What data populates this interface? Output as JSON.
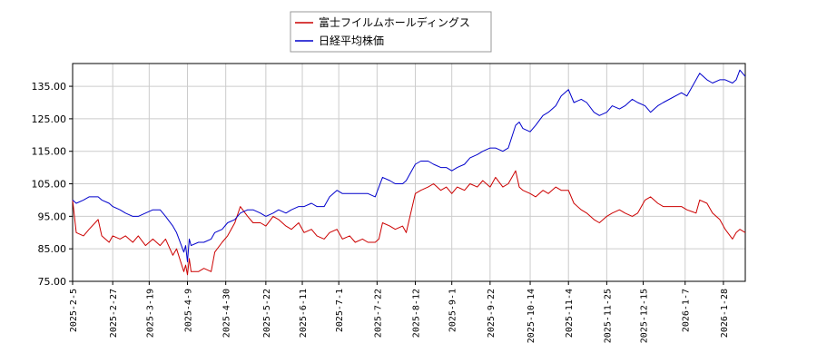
{
  "chart_data": {
    "type": "line",
    "title": "",
    "xlabel": "",
    "ylabel": "",
    "ylim": [
      75,
      142
    ],
    "y_ticks": [
      75,
      85,
      95,
      105,
      115,
      125,
      135
    ],
    "y_tick_labels": [
      "75.00",
      "85.00",
      "95.00",
      "105.00",
      "115.00",
      "125.00",
      "135.00"
    ],
    "x_range": [
      "2025-02-05",
      "2026-02-09"
    ],
    "x_tick_labels": [
      "2025-2-5",
      "2025-2-27",
      "2025-3-19",
      "2025-4-9",
      "2025-4-30",
      "2025-5-22",
      "2025-6-11",
      "2025-7-1",
      "2025-7-22",
      "2025-8-12",
      "2025-9-1",
      "2025-9-22",
      "2025-10-14",
      "2025-11-4",
      "2025-11-25",
      "2025-12-15",
      "2026-1-7",
      "2026-1-28"
    ],
    "grid": true,
    "legend_position": "top-center",
    "series": [
      {
        "name": "富士フイルムホールディングス",
        "color": "#cc0000",
        "points": [
          [
            "2025-02-05",
            100
          ],
          [
            "2025-02-07",
            90
          ],
          [
            "2025-02-11",
            89
          ],
          [
            "2025-02-14",
            91
          ],
          [
            "2025-02-19",
            94
          ],
          [
            "2025-02-21",
            89
          ],
          [
            "2025-02-25",
            87
          ],
          [
            "2025-02-27",
            89
          ],
          [
            "2025-03-03",
            88
          ],
          [
            "2025-03-06",
            89
          ],
          [
            "2025-03-10",
            87
          ],
          [
            "2025-03-13",
            89
          ],
          [
            "2025-03-17",
            86
          ],
          [
            "2025-03-21",
            88
          ],
          [
            "2025-03-25",
            86
          ],
          [
            "2025-03-28",
            88
          ],
          [
            "2025-04-01",
            83
          ],
          [
            "2025-04-03",
            85
          ],
          [
            "2025-04-07",
            78
          ],
          [
            "2025-04-08",
            80
          ],
          [
            "2025-04-09",
            77
          ],
          [
            "2025-04-10",
            82
          ],
          [
            "2025-04-11",
            78
          ],
          [
            "2025-04-15",
            78
          ],
          [
            "2025-04-18",
            79
          ],
          [
            "2025-04-22",
            78
          ],
          [
            "2025-04-24",
            84
          ],
          [
            "2025-04-28",
            87
          ],
          [
            "2025-05-01",
            89
          ],
          [
            "2025-05-05",
            93
          ],
          [
            "2025-05-08",
            98
          ],
          [
            "2025-05-12",
            95
          ],
          [
            "2025-05-15",
            93
          ],
          [
            "2025-05-19",
            93
          ],
          [
            "2025-05-22",
            92
          ],
          [
            "2025-05-26",
            95
          ],
          [
            "2025-05-29",
            94
          ],
          [
            "2025-06-02",
            92
          ],
          [
            "2025-06-05",
            91
          ],
          [
            "2025-06-09",
            93
          ],
          [
            "2025-06-12",
            90
          ],
          [
            "2025-06-16",
            91
          ],
          [
            "2025-06-19",
            89
          ],
          [
            "2025-06-23",
            88
          ],
          [
            "2025-06-26",
            90
          ],
          [
            "2025-06-30",
            91
          ],
          [
            "2025-07-03",
            88
          ],
          [
            "2025-07-07",
            89
          ],
          [
            "2025-07-10",
            87
          ],
          [
            "2025-07-14",
            88
          ],
          [
            "2025-07-17",
            87
          ],
          [
            "2025-07-21",
            87
          ],
          [
            "2025-07-23",
            88
          ],
          [
            "2025-07-25",
            93
          ],
          [
            "2025-07-29",
            92
          ],
          [
            "2025-08-01",
            91
          ],
          [
            "2025-08-05",
            92
          ],
          [
            "2025-08-07",
            90
          ],
          [
            "2025-08-12",
            102
          ],
          [
            "2025-08-15",
            103
          ],
          [
            "2025-08-19",
            104
          ],
          [
            "2025-08-22",
            105
          ],
          [
            "2025-08-26",
            103
          ],
          [
            "2025-08-29",
            104
          ],
          [
            "2025-09-01",
            102
          ],
          [
            "2025-09-04",
            104
          ],
          [
            "2025-09-08",
            103
          ],
          [
            "2025-09-11",
            105
          ],
          [
            "2025-09-15",
            104
          ],
          [
            "2025-09-18",
            106
          ],
          [
            "2025-09-22",
            104
          ],
          [
            "2025-09-25",
            107
          ],
          [
            "2025-09-29",
            104
          ],
          [
            "2025-10-02",
            105
          ],
          [
            "2025-10-06",
            109
          ],
          [
            "2025-10-08",
            104
          ],
          [
            "2025-10-10",
            103
          ],
          [
            "2025-10-14",
            102
          ],
          [
            "2025-10-17",
            101
          ],
          [
            "2025-10-21",
            103
          ],
          [
            "2025-10-24",
            102
          ],
          [
            "2025-10-28",
            104
          ],
          [
            "2025-10-31",
            103
          ],
          [
            "2025-11-04",
            103
          ],
          [
            "2025-11-07",
            99
          ],
          [
            "2025-11-11",
            97
          ],
          [
            "2025-11-14",
            96
          ],
          [
            "2025-11-18",
            94
          ],
          [
            "2025-11-21",
            93
          ],
          [
            "2025-11-25",
            95
          ],
          [
            "2025-11-28",
            96
          ],
          [
            "2025-12-02",
            97
          ],
          [
            "2025-12-05",
            96
          ],
          [
            "2025-12-09",
            95
          ],
          [
            "2025-12-12",
            96
          ],
          [
            "2025-12-16",
            100
          ],
          [
            "2025-12-19",
            101
          ],
          [
            "2025-12-23",
            99
          ],
          [
            "2025-12-26",
            98
          ],
          [
            "2026-01-05",
            98
          ],
          [
            "2026-01-08",
            97
          ],
          [
            "2026-01-13",
            96
          ],
          [
            "2026-01-15",
            100
          ],
          [
            "2026-01-19",
            99
          ],
          [
            "2026-01-22",
            96
          ],
          [
            "2026-01-26",
            94
          ],
          [
            "2026-01-29",
            91
          ],
          [
            "2026-02-02",
            88
          ],
          [
            "2026-02-04",
            90
          ],
          [
            "2026-02-06",
            91
          ],
          [
            "2026-02-09",
            90
          ]
        ]
      },
      {
        "name": "日経平均株価",
        "color": "#0000cc",
        "points": [
          [
            "2025-02-05",
            100
          ],
          [
            "2025-02-07",
            99
          ],
          [
            "2025-02-11",
            100
          ],
          [
            "2025-02-14",
            101
          ],
          [
            "2025-02-19",
            101
          ],
          [
            "2025-02-21",
            100
          ],
          [
            "2025-02-25",
            99
          ],
          [
            "2025-02-27",
            98
          ],
          [
            "2025-03-03",
            97
          ],
          [
            "2025-03-06",
            96
          ],
          [
            "2025-03-10",
            95
          ],
          [
            "2025-03-13",
            95
          ],
          [
            "2025-03-17",
            96
          ],
          [
            "2025-03-21",
            97
          ],
          [
            "2025-03-25",
            97
          ],
          [
            "2025-03-28",
            95
          ],
          [
            "2025-04-01",
            92
          ],
          [
            "2025-04-03",
            90
          ],
          [
            "2025-04-07",
            84
          ],
          [
            "2025-04-08",
            86
          ],
          [
            "2025-04-09",
            81
          ],
          [
            "2025-04-10",
            88
          ],
          [
            "2025-04-11",
            86
          ],
          [
            "2025-04-15",
            87
          ],
          [
            "2025-04-18",
            87
          ],
          [
            "2025-04-22",
            88
          ],
          [
            "2025-04-24",
            90
          ],
          [
            "2025-04-28",
            91
          ],
          [
            "2025-05-01",
            93
          ],
          [
            "2025-05-05",
            94
          ],
          [
            "2025-05-08",
            96
          ],
          [
            "2025-05-12",
            97
          ],
          [
            "2025-05-15",
            97
          ],
          [
            "2025-05-19",
            96
          ],
          [
            "2025-05-22",
            95
          ],
          [
            "2025-05-26",
            96
          ],
          [
            "2025-05-29",
            97
          ],
          [
            "2025-06-02",
            96
          ],
          [
            "2025-06-05",
            97
          ],
          [
            "2025-06-09",
            98
          ],
          [
            "2025-06-12",
            98
          ],
          [
            "2025-06-16",
            99
          ],
          [
            "2025-06-19",
            98
          ],
          [
            "2025-06-23",
            98
          ],
          [
            "2025-06-26",
            101
          ],
          [
            "2025-06-30",
            103
          ],
          [
            "2025-07-03",
            102
          ],
          [
            "2025-07-07",
            102
          ],
          [
            "2025-07-10",
            102
          ],
          [
            "2025-07-14",
            102
          ],
          [
            "2025-07-17",
            102
          ],
          [
            "2025-07-21",
            101
          ],
          [
            "2025-07-23",
            104
          ],
          [
            "2025-07-25",
            107
          ],
          [
            "2025-07-29",
            106
          ],
          [
            "2025-08-01",
            105
          ],
          [
            "2025-08-05",
            105
          ],
          [
            "2025-08-07",
            106
          ],
          [
            "2025-08-12",
            111
          ],
          [
            "2025-08-15",
            112
          ],
          [
            "2025-08-19",
            112
          ],
          [
            "2025-08-22",
            111
          ],
          [
            "2025-08-26",
            110
          ],
          [
            "2025-08-29",
            110
          ],
          [
            "2025-09-01",
            109
          ],
          [
            "2025-09-04",
            110
          ],
          [
            "2025-09-08",
            111
          ],
          [
            "2025-09-11",
            113
          ],
          [
            "2025-09-15",
            114
          ],
          [
            "2025-09-18",
            115
          ],
          [
            "2025-09-22",
            116
          ],
          [
            "2025-09-25",
            116
          ],
          [
            "2025-09-29",
            115
          ],
          [
            "2025-10-02",
            116
          ],
          [
            "2025-10-06",
            123
          ],
          [
            "2025-10-08",
            124
          ],
          [
            "2025-10-10",
            122
          ],
          [
            "2025-10-14",
            121
          ],
          [
            "2025-10-17",
            123
          ],
          [
            "2025-10-21",
            126
          ],
          [
            "2025-10-24",
            127
          ],
          [
            "2025-10-28",
            129
          ],
          [
            "2025-10-31",
            132
          ],
          [
            "2025-11-04",
            134
          ],
          [
            "2025-11-07",
            130
          ],
          [
            "2025-11-11",
            131
          ],
          [
            "2025-11-14",
            130
          ],
          [
            "2025-11-18",
            127
          ],
          [
            "2025-11-21",
            126
          ],
          [
            "2025-11-25",
            127
          ],
          [
            "2025-11-28",
            129
          ],
          [
            "2025-12-02",
            128
          ],
          [
            "2025-12-05",
            129
          ],
          [
            "2025-12-09",
            131
          ],
          [
            "2025-12-12",
            130
          ],
          [
            "2025-12-16",
            129
          ],
          [
            "2025-12-19",
            127
          ],
          [
            "2025-12-23",
            129
          ],
          [
            "2025-12-26",
            130
          ],
          [
            "2026-01-05",
            133
          ],
          [
            "2026-01-08",
            132
          ],
          [
            "2026-01-13",
            137
          ],
          [
            "2026-01-15",
            139
          ],
          [
            "2026-01-19",
            137
          ],
          [
            "2026-01-22",
            136
          ],
          [
            "2026-01-26",
            137
          ],
          [
            "2026-01-29",
            137
          ],
          [
            "2026-02-02",
            136
          ],
          [
            "2026-02-04",
            137
          ],
          [
            "2026-02-06",
            140
          ],
          [
            "2026-02-09",
            138
          ]
        ]
      }
    ]
  }
}
